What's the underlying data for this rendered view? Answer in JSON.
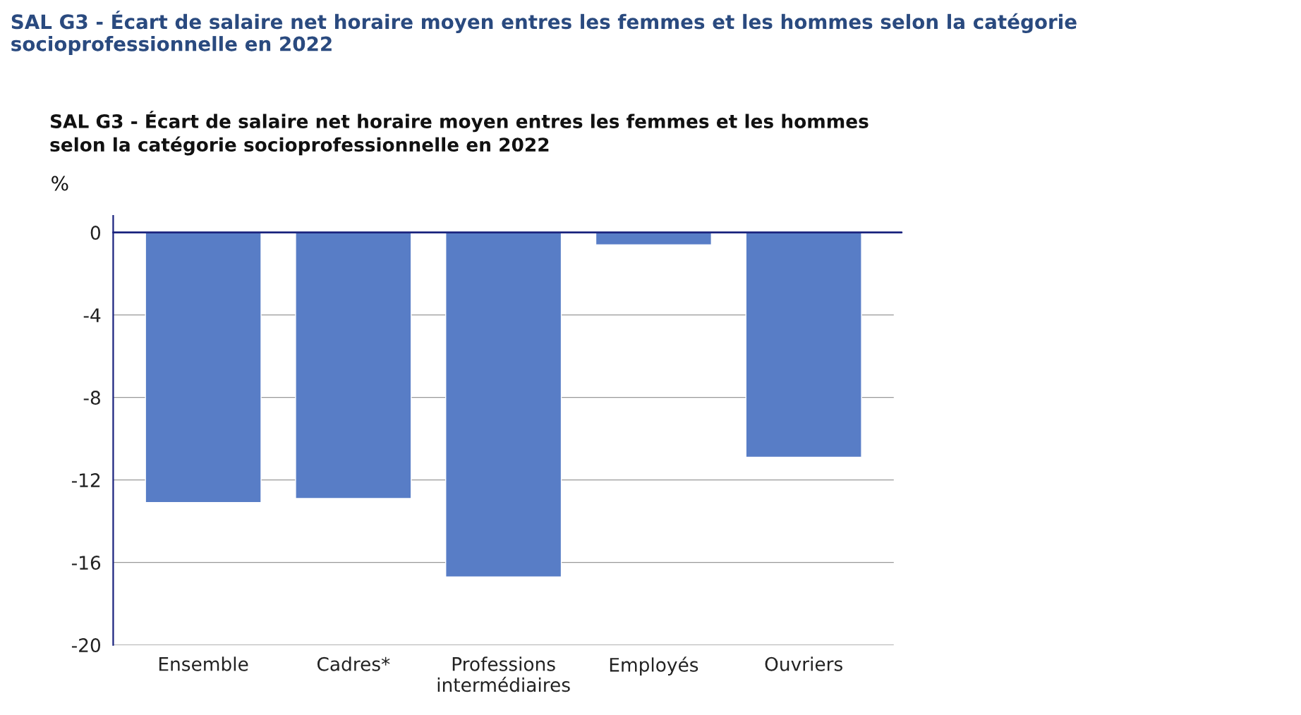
{
  "chart_data": {
    "type": "bar",
    "title": "SAL G3 - Écart de salaire net horaire moyen entres les femmes et les hommes selon la catégorie socioprofessionnelle en 2022",
    "subtitle": "SAL G3 - Écart de salaire net horaire moyen entres les femmes et les hommes\nselon la catégorie socioprofessionnelle en 2022",
    "ylabel": "%",
    "categories": [
      "Ensemble",
      "Cadres*",
      "Professions\nintermédiaires",
      "Employés",
      "Ouvriers"
    ],
    "values": [
      -13.1,
      -12.9,
      -16.7,
      -0.6,
      -10.9
    ],
    "color": "#587dc6",
    "ylim": [
      -20,
      0.8
    ],
    "yticks": [
      0,
      -4,
      -8,
      -12,
      -16,
      -20
    ],
    "ref_lines": [
      {
        "axis": "y",
        "value": 0,
        "color": "#1a237e"
      }
    ],
    "grid": "y",
    "legend": false
  }
}
